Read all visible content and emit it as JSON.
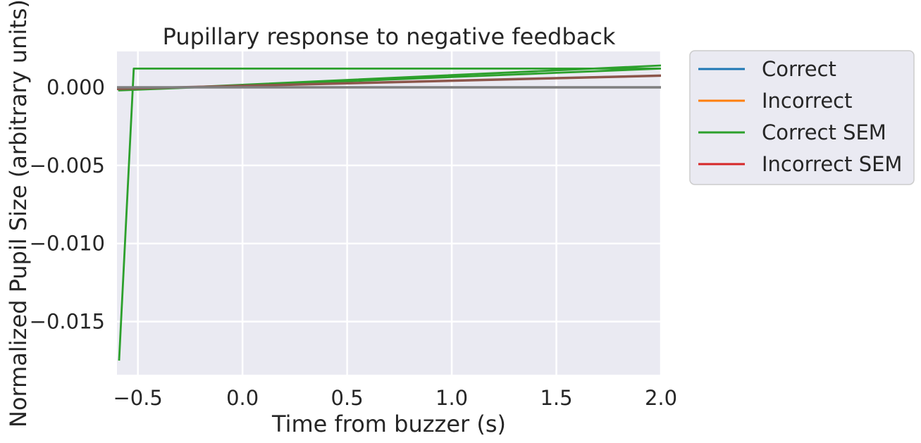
{
  "chart_data": {
    "type": "line",
    "title": "Pupillary response to negative feedback",
    "xlabel": "Time from buzzer (s)",
    "ylabel": "Normalized Pupil Size (arbitrary units)",
    "xlim": [
      -0.6,
      2.0
    ],
    "ylim": [
      -0.0184,
      0.0023
    ],
    "xticks": [
      -0.5,
      0.0,
      0.5,
      1.0,
      1.5,
      2.0
    ],
    "xtick_labels": [
      "−0.5",
      "0.0",
      "0.5",
      "1.0",
      "1.5",
      "2.0"
    ],
    "yticks": [
      0.0,
      -0.005,
      -0.01,
      -0.015
    ],
    "ytick_labels": [
      "0.000",
      "−0.005",
      "−0.010",
      "−0.015"
    ],
    "grid": true,
    "legend_position": "outside-right-top",
    "series": [
      {
        "name": "Correct",
        "color": "#1f77b4",
        "x": [
          -0.6,
          2.0
        ],
        "y": [
          0.0,
          0.0
        ]
      },
      {
        "name": "Incorrect",
        "color": "#ff7f0e",
        "x": [
          -0.6,
          2.0
        ],
        "y": [
          0.0,
          0.0
        ]
      },
      {
        "name": "Correct SEM",
        "color": "#2ca02c",
        "x": [
          -0.59,
          -0.52,
          2.0,
          -0.59,
          2.0
        ],
        "y": [
          -0.0175,
          0.0012,
          0.0012,
          -0.0002,
          0.0014
        ]
      },
      {
        "name": "Incorrect SEM",
        "color": "#d62728",
        "x": [
          -0.6,
          2.0
        ],
        "y": [
          -0.0001,
          0.00075
        ]
      },
      {
        "name": "",
        "color": "#8c564b",
        "x": [
          -0.6,
          2.0
        ],
        "y": [
          -0.0001,
          0.00075
        ]
      },
      {
        "name": "",
        "color": "#7f7f7f",
        "x": [
          -0.6,
          2.0
        ],
        "y": [
          0.0,
          0.0
        ]
      }
    ]
  }
}
